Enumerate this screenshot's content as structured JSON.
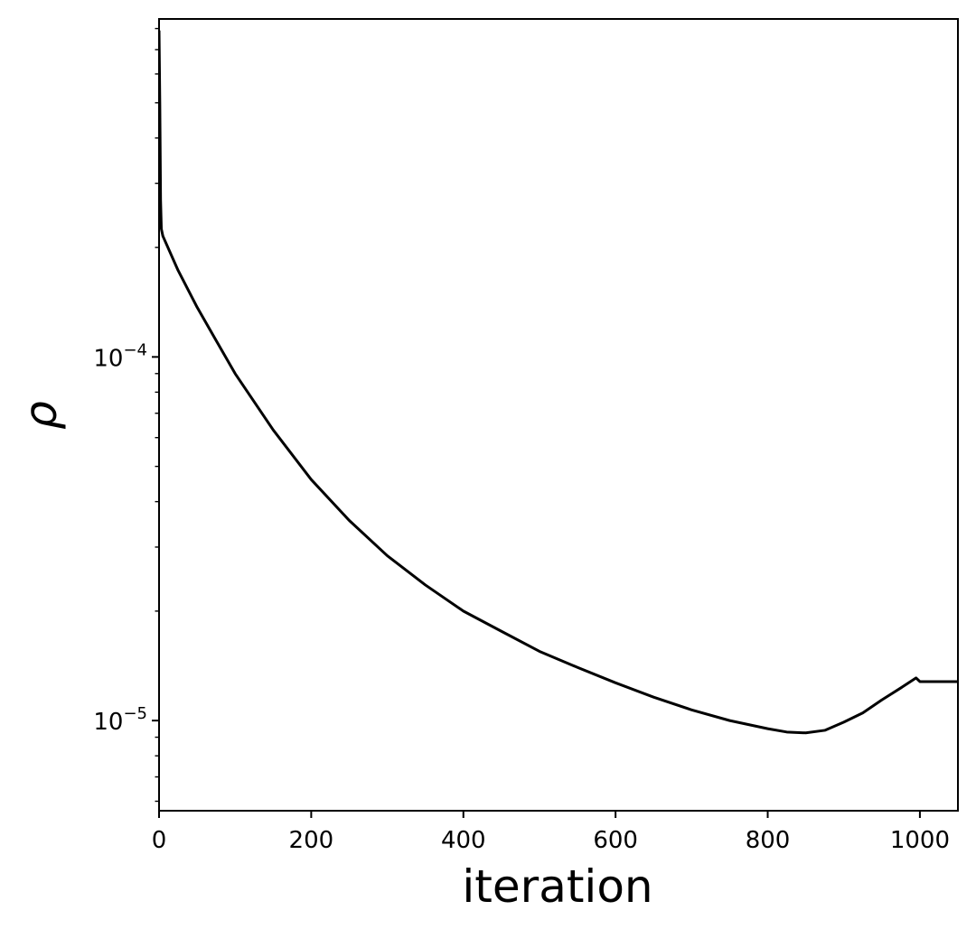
{
  "chart_data": {
    "type": "line",
    "title": "",
    "xlabel": "iteration",
    "ylabel": "ρ",
    "xscale": "linear",
    "yscale": "log",
    "xlim": [
      0,
      1050
    ],
    "ylim": [
      5.65e-06,
      0.00085
    ],
    "grid": false,
    "x_ticks": [
      {
        "value": 0,
        "label": "0"
      },
      {
        "value": 200,
        "label": "200"
      },
      {
        "value": 400,
        "label": "400"
      },
      {
        "value": 600,
        "label": "600"
      },
      {
        "value": 800,
        "label": "800"
      },
      {
        "value": 1000,
        "label": "1000"
      }
    ],
    "y_ticks": [
      {
        "value": 1e-05,
        "base": "10",
        "exp": "−5"
      },
      {
        "value": 0.0001,
        "base": "10",
        "exp": "−4"
      }
    ],
    "y_minor_ticks": [
      6e-06,
      7e-06,
      8e-06,
      9e-06,
      2e-05,
      3e-05,
      4e-05,
      5e-05,
      6e-05,
      7e-05,
      8e-05,
      9e-05,
      0.0002,
      0.0003,
      0.0004,
      0.0005,
      0.0006,
      0.0007,
      0.0008
    ],
    "series": [
      {
        "color": "#000000",
        "points": [
          [
            0,
            0.00079
          ],
          [
            1,
            0.0005
          ],
          [
            2,
            0.00027
          ],
          [
            3,
            0.000225
          ],
          [
            5,
            0.000215
          ],
          [
            25,
            0.000173
          ],
          [
            50,
            0.000137
          ],
          [
            75,
            0.000111
          ],
          [
            100,
            9e-05
          ],
          [
            150,
            6.3e-05
          ],
          [
            200,
            4.6e-05
          ],
          [
            250,
            3.55e-05
          ],
          [
            300,
            2.84e-05
          ],
          [
            350,
            2.36e-05
          ],
          [
            400,
            2e-05
          ],
          [
            450,
            1.76e-05
          ],
          [
            500,
            1.55e-05
          ],
          [
            550,
            1.4e-05
          ],
          [
            600,
            1.27e-05
          ],
          [
            650,
            1.16e-05
          ],
          [
            700,
            1.07e-05
          ],
          [
            750,
            1e-05
          ],
          [
            800,
            9.5e-06
          ],
          [
            825,
            9.3e-06
          ],
          [
            850,
            9.25e-06
          ],
          [
            875,
            9.4e-06
          ],
          [
            900,
            9.9e-06
          ],
          [
            925,
            1.05e-05
          ],
          [
            950,
            1.14e-05
          ],
          [
            975,
            1.23e-05
          ],
          [
            995,
            1.31e-05
          ],
          [
            1000,
            1.28e-05
          ],
          [
            1050,
            1.28e-05
          ]
        ]
      }
    ]
  }
}
